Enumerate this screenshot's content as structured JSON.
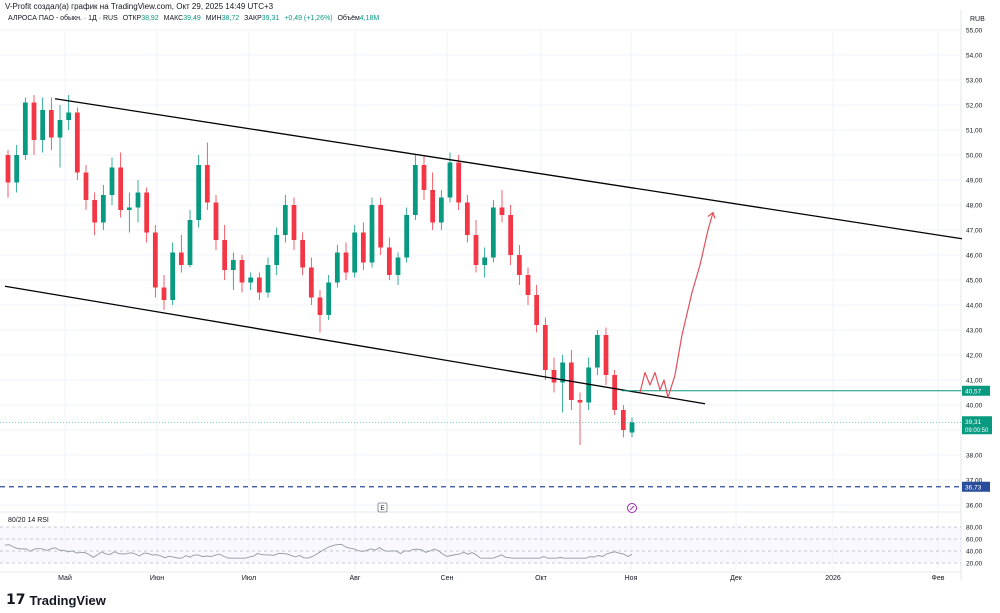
{
  "header": {
    "text": "V-Profit создал(а) график на TradingView.com, Окт 29, 2025 14:49 UTC+3"
  },
  "legend": {
    "title": "АЛРОСА ПАО - обыкн. · 1Д · RUS",
    "open_label": "ОТКР",
    "open": "38,92",
    "high_label": "МАКС",
    "high": "39,49",
    "low_label": "МИН",
    "low": "38,72",
    "close_label": "ЗАКР",
    "close": "39,31",
    "change": "+0,49 (+1,26%)",
    "volume_label": "Объём",
    "volume": "4,18M"
  },
  "currency": "RUB",
  "price_axis": {
    "ticks": [
      "55,00",
      "54,00",
      "53,00",
      "52,00",
      "51,00",
      "50,00",
      "49,00",
      "48,00",
      "47,00",
      "46,00",
      "45,00",
      "44,00",
      "43,00",
      "42,00",
      "41,00",
      "40,00",
      "39,00",
      "38,00",
      "37,00",
      "36,00"
    ]
  },
  "price_labels": {
    "level": "40,57",
    "last": "39,31",
    "countdown": "09:00:50",
    "support": "36,73"
  },
  "time_axis": {
    "labels": [
      "Май",
      "Июн",
      "Июл",
      "Авг",
      "Сен",
      "Окт",
      "Ноя",
      "Дек",
      "2026",
      "Фев"
    ]
  },
  "markers": {
    "earnings": "E"
  },
  "rsi": {
    "title": "80/20 14 RSI",
    "ticks": [
      "80,00",
      "60,00",
      "40,00",
      "20,00"
    ]
  },
  "branding": {
    "logo_text": "TradingView"
  },
  "colors": {
    "up": "#089981",
    "down": "#f23645",
    "channel": "#000000",
    "level": "#089981",
    "support": "#2a4d9b",
    "projection": "#e0505a",
    "rsi": "#9598a1"
  },
  "chart_data": {
    "type": "candlestick",
    "ylim": [
      35.5,
      55.5
    ],
    "annotations": [
      "descending channel",
      "horizontal level 40,57",
      "support 36,73",
      "projected upward path"
    ],
    "ohlc_approx": [
      [
        50.0,
        50.2,
        48.3,
        48.9
      ],
      [
        48.9,
        50.4,
        48.5,
        50.0
      ],
      [
        50.0,
        52.3,
        49.8,
        52.1
      ],
      [
        52.1,
        52.4,
        50.0,
        50.6
      ],
      [
        50.6,
        52.3,
        50.1,
        51.8
      ],
      [
        51.8,
        52.3,
        50.2,
        50.7
      ],
      [
        50.7,
        52.0,
        49.5,
        51.4
      ],
      [
        51.4,
        52.4,
        51.0,
        51.7
      ],
      [
        51.7,
        51.9,
        49.0,
        49.3
      ],
      [
        49.3,
        49.6,
        47.8,
        48.2
      ],
      [
        48.2,
        48.5,
        46.8,
        47.3
      ],
      [
        47.3,
        48.8,
        47.0,
        48.4
      ],
      [
        48.4,
        49.9,
        48.0,
        49.5
      ],
      [
        49.5,
        50.1,
        47.5,
        47.8
      ],
      [
        47.8,
        48.5,
        46.9,
        47.9
      ],
      [
        47.9,
        49.0,
        47.3,
        48.5
      ],
      [
        48.5,
        48.7,
        46.5,
        46.9
      ],
      [
        46.9,
        47.2,
        44.3,
        44.7
      ],
      [
        44.7,
        45.2,
        43.8,
        44.2
      ],
      [
        44.2,
        46.5,
        44.0,
        46.1
      ],
      [
        46.1,
        46.8,
        45.3,
        45.6
      ],
      [
        45.6,
        47.8,
        45.5,
        47.4
      ],
      [
        47.4,
        50.0,
        47.1,
        49.6
      ],
      [
        49.6,
        50.5,
        47.8,
        48.1
      ],
      [
        48.1,
        48.4,
        46.2,
        46.6
      ],
      [
        46.6,
        47.2,
        45.0,
        45.4
      ],
      [
        45.4,
        46.1,
        44.6,
        45.8
      ],
      [
        45.8,
        46.0,
        44.5,
        44.9
      ],
      [
        44.9,
        45.3,
        44.6,
        45.1
      ],
      [
        45.1,
        45.3,
        44.2,
        44.5
      ],
      [
        44.5,
        45.9,
        44.3,
        45.6
      ],
      [
        45.6,
        47.1,
        45.2,
        46.8
      ],
      [
        46.8,
        48.4,
        46.5,
        48.0
      ],
      [
        48.0,
        48.3,
        46.2,
        46.6
      ],
      [
        46.6,
        46.9,
        45.2,
        45.5
      ],
      [
        45.5,
        45.9,
        44.0,
        44.3
      ],
      [
        44.3,
        44.6,
        42.9,
        43.6
      ],
      [
        43.6,
        45.2,
        43.4,
        44.9
      ],
      [
        44.9,
        46.4,
        44.7,
        46.1
      ],
      [
        46.1,
        46.5,
        45.0,
        45.3
      ],
      [
        45.3,
        47.2,
        45.1,
        46.9
      ],
      [
        46.9,
        47.3,
        45.4,
        45.7
      ],
      [
        45.7,
        48.3,
        45.5,
        48.0
      ],
      [
        48.0,
        48.3,
        46.0,
        46.3
      ],
      [
        46.3,
        46.7,
        45.0,
        45.2
      ],
      [
        45.2,
        46.1,
        44.8,
        45.9
      ],
      [
        45.9,
        47.9,
        45.7,
        47.6
      ],
      [
        47.6,
        50.0,
        47.4,
        49.6
      ],
      [
        49.6,
        50.0,
        48.2,
        48.6
      ],
      [
        48.6,
        49.3,
        47.0,
        47.3
      ],
      [
        47.3,
        48.6,
        47.0,
        48.3
      ],
      [
        48.3,
        50.1,
        48.1,
        49.7
      ],
      [
        49.7,
        50.0,
        47.8,
        48.1
      ],
      [
        48.1,
        48.4,
        46.5,
        46.8
      ],
      [
        46.8,
        47.4,
        45.3,
        45.6
      ],
      [
        45.6,
        46.3,
        45.1,
        45.9
      ],
      [
        45.9,
        48.2,
        45.7,
        47.9
      ],
      [
        47.9,
        48.6,
        47.3,
        47.6
      ],
      [
        47.6,
        48.0,
        45.6,
        46.0
      ],
      [
        46.0,
        46.4,
        44.8,
        45.2
      ],
      [
        45.2,
        45.5,
        44.0,
        44.4
      ],
      [
        44.4,
        44.8,
        42.9,
        43.2
      ],
      [
        43.2,
        43.5,
        41.0,
        41.4
      ],
      [
        41.4,
        41.9,
        40.5,
        40.9
      ],
      [
        40.9,
        42.0,
        39.7,
        41.7
      ],
      [
        41.7,
        42.2,
        39.8,
        40.2
      ],
      [
        40.2,
        40.5,
        38.4,
        40.1
      ],
      [
        40.1,
        41.9,
        39.8,
        41.5
      ],
      [
        41.5,
        43.0,
        41.2,
        42.8
      ],
      [
        42.8,
        43.1,
        40.8,
        41.2
      ],
      [
        41.2,
        41.4,
        39.6,
        39.8
      ],
      [
        39.8,
        40.0,
        38.7,
        39.0
      ],
      [
        38.9,
        39.5,
        38.7,
        39.3
      ]
    ]
  }
}
